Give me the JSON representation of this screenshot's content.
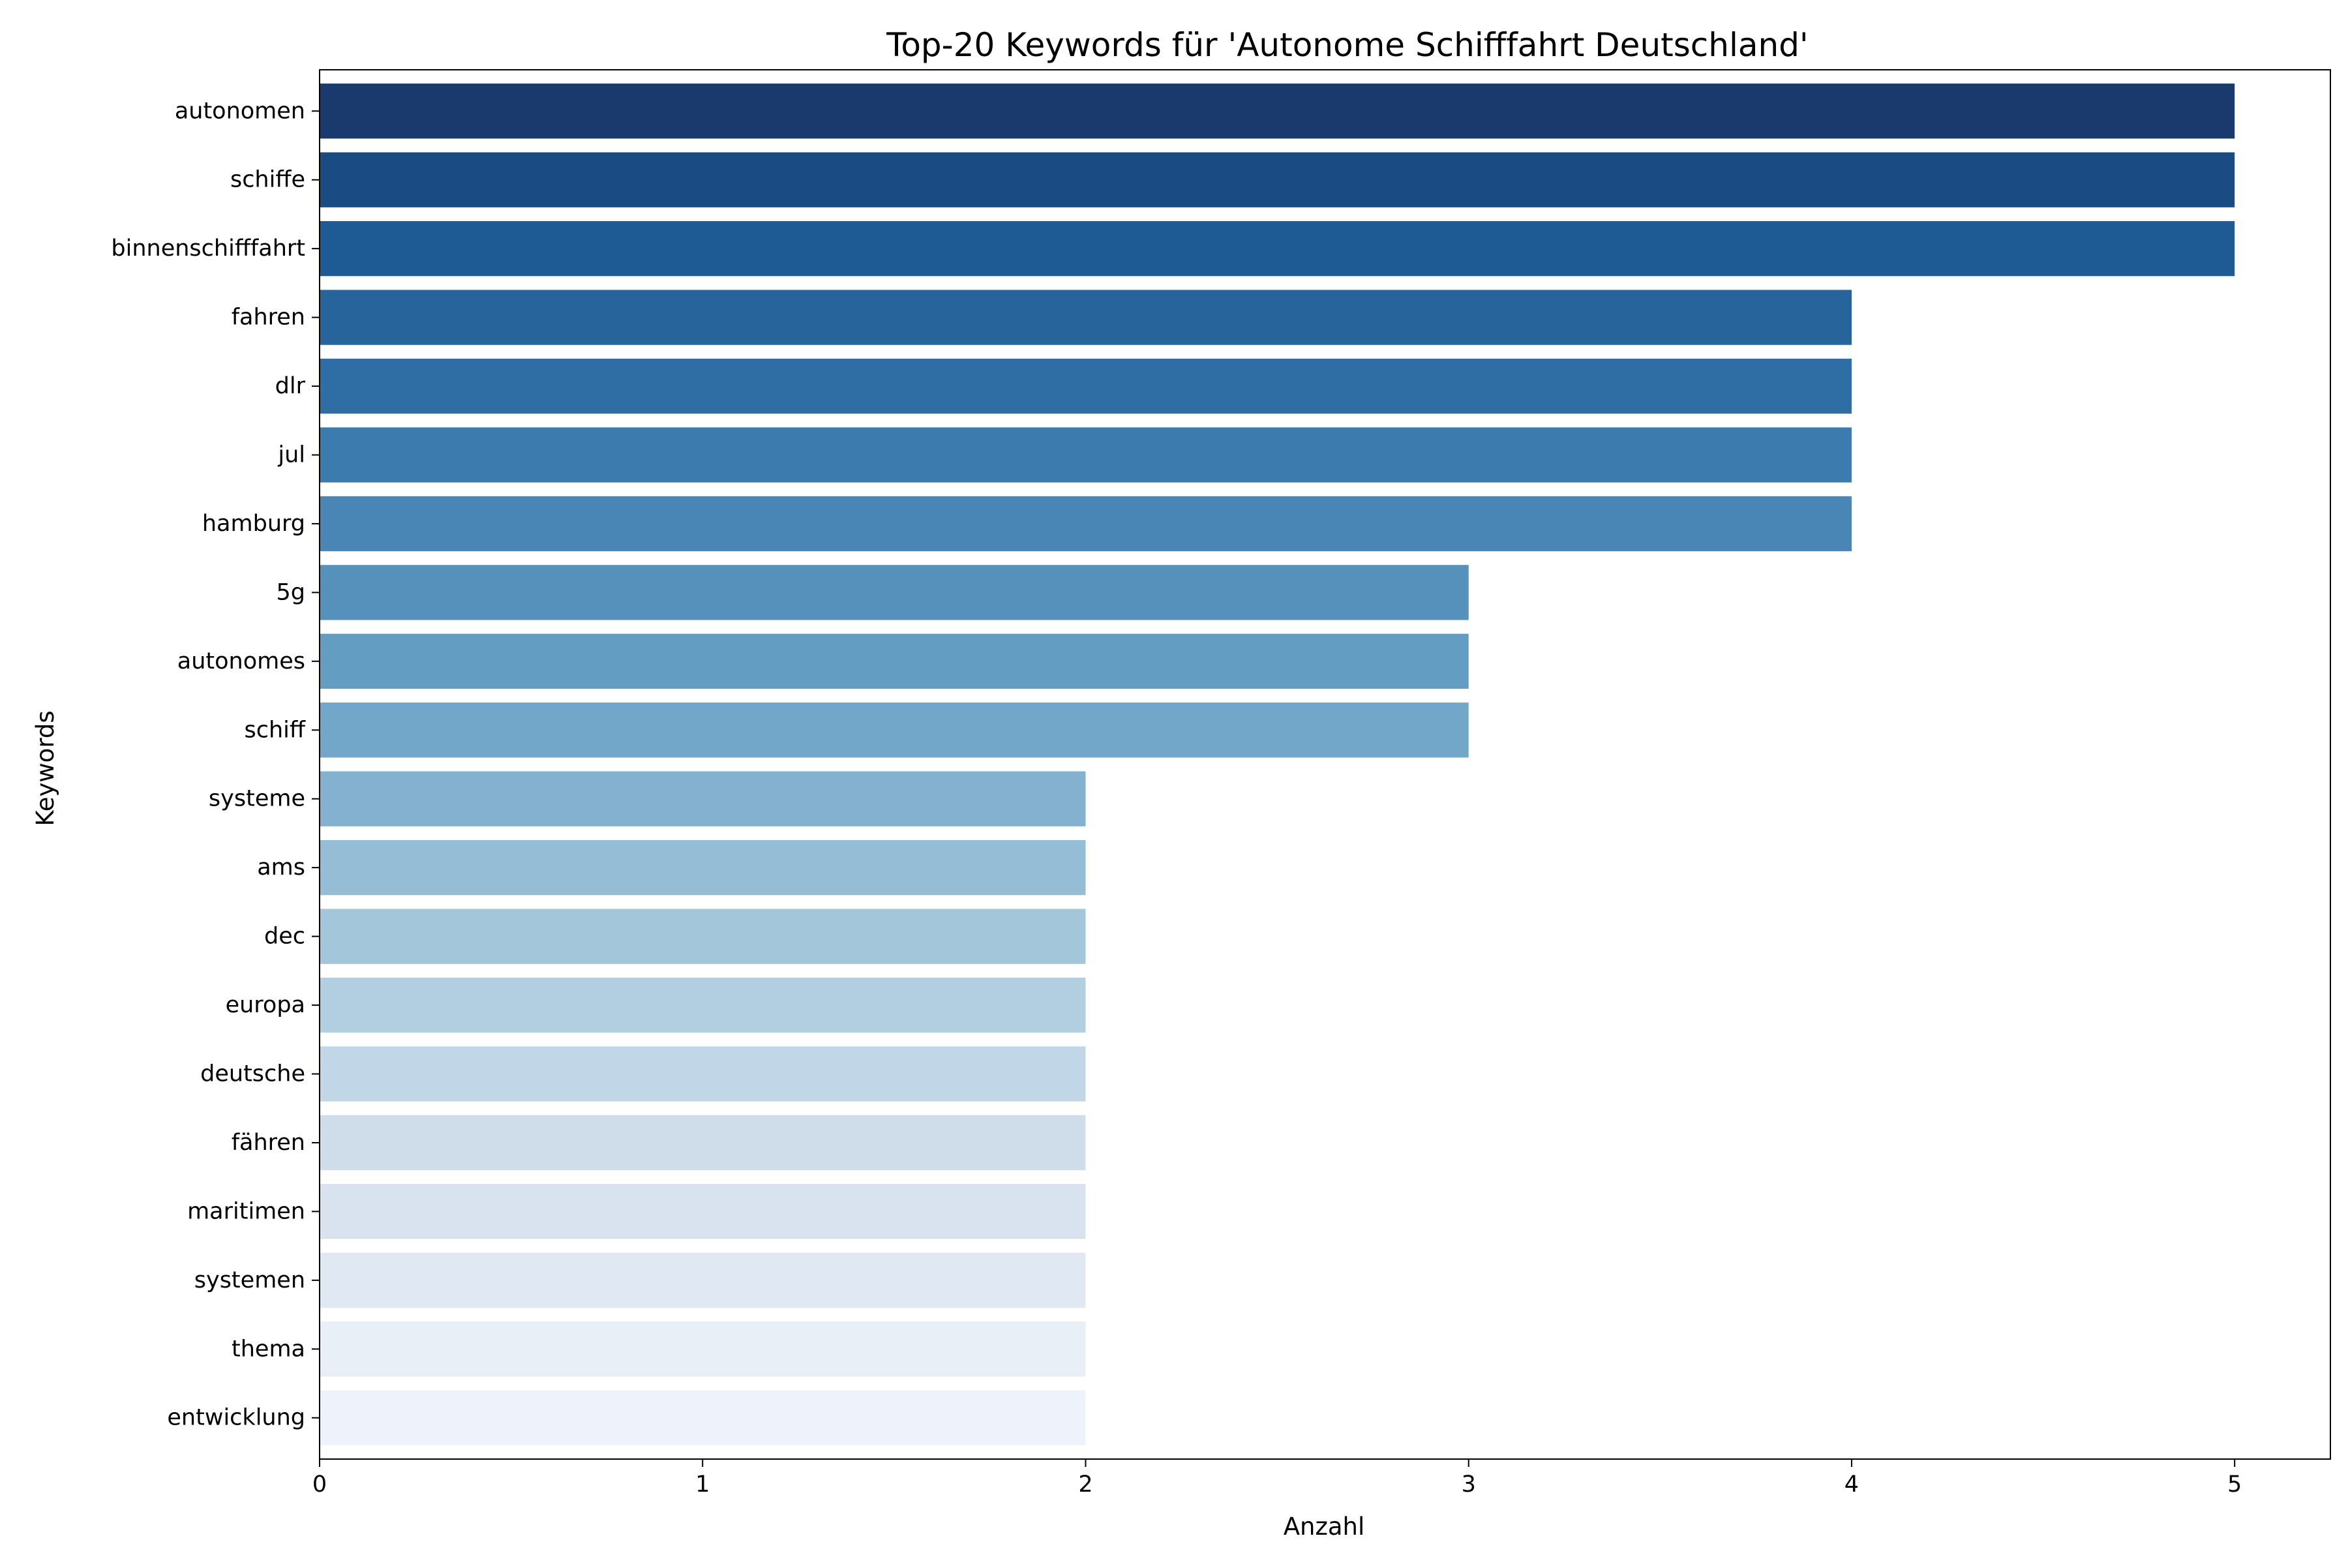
{
  "chart_data": {
    "type": "bar",
    "orientation": "horizontal",
    "title": "Top-20 Keywords für 'Autonome Schifffahrt Deutschland'",
    "xlabel": "Anzahl",
    "ylabel": "Keywords",
    "xlim": [
      0,
      5.25
    ],
    "x_ticks": [
      0,
      1,
      2,
      3,
      4,
      5
    ],
    "grid": false,
    "legend": "none",
    "categories": [
      "autonomen",
      "schiffe",
      "binnenschifffahrt",
      "fahren",
      "dlr",
      "jul",
      "hamburg",
      "5g",
      "autonomes",
      "schiff",
      "systeme",
      "ams",
      "dec",
      "europa",
      "deutsche",
      "fähren",
      "maritimen",
      "systemen",
      "thema",
      "entwicklung"
    ],
    "values": [
      5,
      5,
      5,
      4,
      4,
      4,
      4,
      3,
      3,
      3,
      2,
      2,
      2,
      2,
      2,
      2,
      2,
      2,
      2,
      2
    ],
    "colors": [
      "#1a3a6e",
      "#1a4b82",
      "#1e5a94",
      "#27649b",
      "#2e6ea4",
      "#3b7bad",
      "#4a86b5",
      "#5591ba",
      "#639dc2",
      "#72a7c9",
      "#84b1d0",
      "#95bdd5",
      "#a4c6da",
      "#b2cfe1",
      "#c1d7e7",
      "#cedde9",
      "#d8e3ef",
      "#e0e9f3",
      "#e8eff7",
      "#eef3fb"
    ]
  }
}
